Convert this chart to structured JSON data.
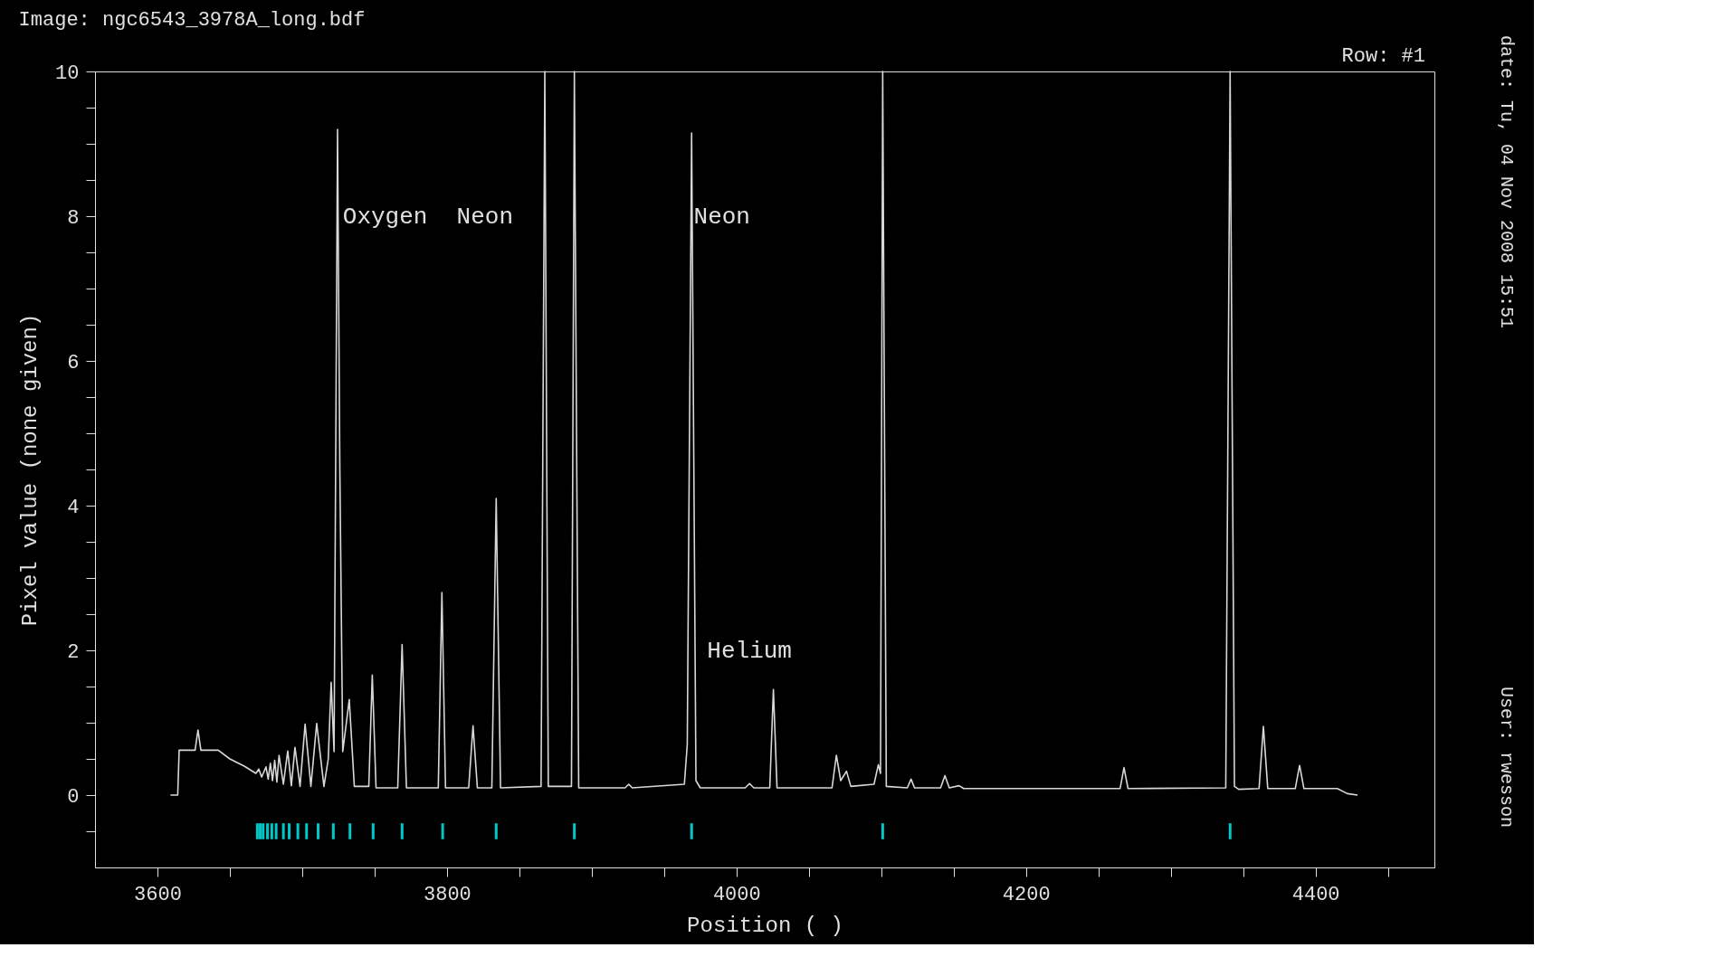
{
  "chart_data": {
    "type": "line",
    "title": "Image:  ngc6543_3978A_long.bdf",
    "xlabel": "Position ( )",
    "ylabel": "Pixel value (none given)",
    "xlim": [
      3560,
      4479
    ],
    "ylim": [
      -1,
      10
    ],
    "xticks": [
      3600,
      {
        "value": 3650,
        "label": null
      },
      {
        "value": 3700,
        "label": null
      },
      {
        "value": 3750,
        "label": null
      },
      3800,
      {
        "value": 3850,
        "label": null
      },
      {
        "value": 3900,
        "label": null
      },
      {
        "value": 3950,
        "label": null
      },
      4000,
      {
        "value": 4050,
        "label": null
      },
      {
        "value": 4100,
        "label": null
      },
      {
        "value": 4150,
        "label": null
      },
      4200,
      {
        "value": 4250,
        "label": null
      },
      {
        "value": 4300,
        "label": null
      },
      {
        "value": 4350,
        "label": null
      },
      4400,
      {
        "value": 4450,
        "label": null
      }
    ],
    "yticks": [
      {
        "value": -0.5,
        "label": null
      },
      0,
      {
        "value": 0.5,
        "label": null
      },
      {
        "value": 1,
        "label": null
      },
      {
        "value": 1.5,
        "label": null
      },
      2,
      {
        "value": 2.5,
        "label": null
      },
      {
        "value": 3,
        "label": null
      },
      {
        "value": 3.5,
        "label": null
      },
      4,
      {
        "value": 4.5,
        "label": null
      },
      {
        "value": 5,
        "label": null
      },
      {
        "value": 5.5,
        "label": null
      },
      6,
      {
        "value": 6.5,
        "label": null
      },
      {
        "value": 7,
        "label": null
      },
      {
        "value": 7.5,
        "label": null
      },
      8,
      {
        "value": 8.5,
        "label": null
      },
      {
        "value": 9,
        "label": null
      },
      {
        "value": 9.5,
        "label": null
      },
      10
    ],
    "grid": false,
    "series": [
      {
        "color": "#d8d8d8",
        "x": [
          3609,
          3614,
          3615,
          3626,
          3628,
          3630,
          3642,
          3650,
          3660,
          3668,
          3670,
          3672,
          3675,
          3676.5,
          3678,
          3679.5,
          3681,
          3682.5,
          3684,
          3687,
          3690,
          3692.5,
          3695,
          3698.5,
          3702,
          3706,
          3710,
          3715,
          3718,
          3720,
          3722,
          3724.4,
          3726,
          3728,
          3732.5,
          3736,
          3746,
          3748.4,
          3751,
          3766,
          3769,
          3772,
          3794,
          3796.5,
          3799,
          3815,
          3818,
          3821,
          3831,
          3834,
          3837,
          3865,
          3867.6,
          3870,
          3886,
          3888,
          3891,
          3923,
          3925.6,
          3928,
          3964,
          3966,
          3969,
          3972,
          3975,
          4006,
          4009,
          4012,
          4023,
          4025.5,
          4028,
          4066,
          4069,
          4072,
          4076,
          4079,
          4095,
          4098,
          4099.5,
          4101,
          4103.5,
          4118,
          4120.6,
          4123,
          4141,
          4144,
          4147,
          4153.8,
          4157,
          4265,
          4267.7,
          4270.5,
          4338,
          4341,
          4344,
          4347,
          4361,
          4364,
          4367,
          4386,
          4389,
          4392,
          4415,
          4422,
          4429
        ],
        "values": [
          0,
          0,
          0.62,
          0.62,
          0.9,
          0.62,
          0.62,
          0.5,
          0.4,
          0.3,
          0.36,
          0.25,
          0.39,
          0.22,
          0.44,
          0.2,
          0.48,
          0.18,
          0.55,
          0.15,
          0.61,
          0.13,
          0.66,
          0.12,
          0.98,
          0.12,
          0.99,
          0.12,
          0.5,
          1.56,
          0.6,
          9.2,
          4.5,
          0.6,
          1.32,
          0.12,
          0.12,
          1.66,
          0.1,
          0.1,
          2.08,
          0.1,
          0.1,
          2.8,
          0.1,
          0.1,
          0.96,
          0.1,
          0.1,
          4.1,
          0.1,
          0.12,
          10,
          0.12,
          0.12,
          10,
          0.1,
          0.1,
          0.15,
          0.1,
          0.15,
          0.7,
          9.15,
          0.2,
          0.1,
          0.1,
          0.16,
          0.1,
          0.1,
          1.46,
          0.1,
          0.1,
          0.55,
          0.2,
          0.33,
          0.12,
          0.15,
          0.42,
          0.3,
          10,
          0.12,
          0.1,
          0.22,
          0.1,
          0.1,
          0.27,
          0.1,
          0.13,
          0.09,
          0.09,
          0.38,
          0.09,
          0.1,
          10,
          0.12,
          0.08,
          0.09,
          0.95,
          0.09,
          0.09,
          0.41,
          0.09,
          0.09,
          0.02,
          0
        ]
      },
      {
        "type": "bar",
        "color": "#00c8c8",
        "x": [
          3669,
          3671,
          3673,
          3676,
          3679,
          3682,
          3687,
          3691,
          3697,
          3703,
          3711,
          3721.5,
          3733,
          3749,
          3769,
          3797,
          3834,
          3888,
          3969,
          4101,
          4341
        ],
        "base": [
          -0.61,
          -0.61,
          -0.61,
          -0.61,
          -0.61,
          -0.61,
          -0.61,
          -0.61,
          -0.61,
          -0.61,
          -0.61,
          -0.61,
          -0.61,
          -0.61,
          -0.61,
          -0.61,
          -0.61,
          -0.61,
          -0.61,
          -0.61,
          -0.61
        ],
        "values": [
          0.22,
          0.22,
          0.22,
          0.22,
          0.22,
          0.22,
          0.22,
          0.22,
          0.22,
          0.22,
          0.22,
          0.22,
          0.22,
          0.22,
          0.22,
          0.22,
          0.22,
          0.22,
          0.22,
          0.22,
          0.22
        ]
      }
    ],
    "annotations": [
      "Oxygen",
      "Neon",
      "Neon",
      "Helium",
      "Row: #1",
      "date: Tu, 04 Nov 2008 15:51",
      "User: rwesson"
    ]
  }
}
